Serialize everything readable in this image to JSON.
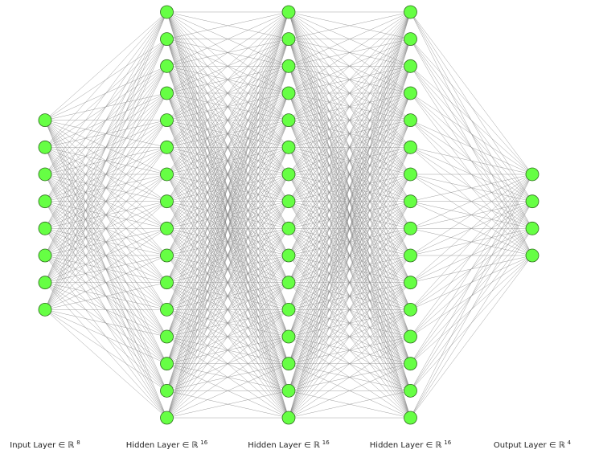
{
  "layers": [
    {
      "label": "Input Layer ∈ ℝ",
      "size": 8
    },
    {
      "label": "Hidden Layer ∈ ℝ",
      "size": 16
    },
    {
      "label": "Hidden Layer ∈ ℝ",
      "size": 16
    },
    {
      "label": "Hidden Layer ∈ ℝ",
      "size": 16
    },
    {
      "label": "Output Layer ∈ ℝ",
      "size": 4
    }
  ]
}
